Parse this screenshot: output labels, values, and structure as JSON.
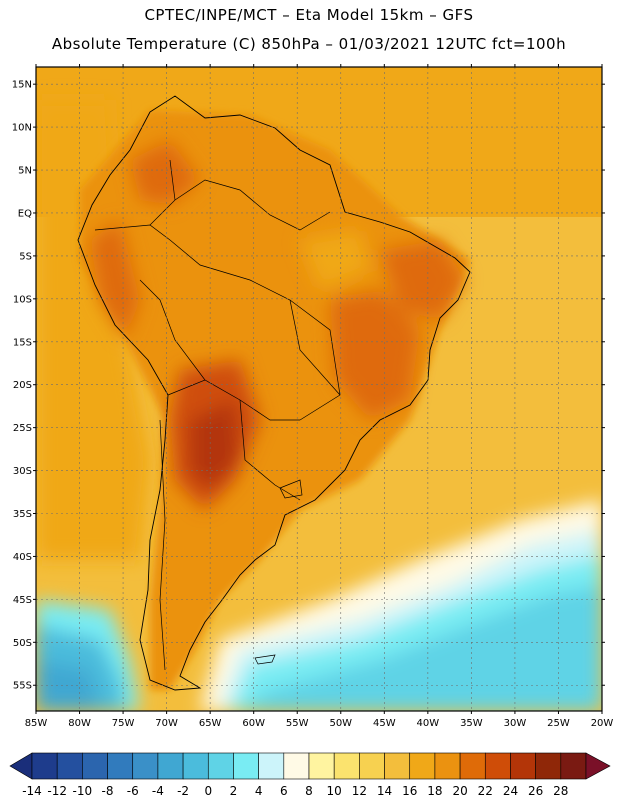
{
  "header": {
    "line1": "CPTEC/INPE/MCT –  Eta Model 15km – GFS",
    "line2": "Absolute Temperature (C) 850hPa – 01/03/2021 12UTC fct=100h"
  },
  "map": {
    "lon_range": [
      -85,
      -20
    ],
    "lat_range": [
      -58,
      17
    ],
    "lat_ticks": [
      "15N",
      "10N",
      "5N",
      "EQ",
      "5S",
      "10S",
      "15S",
      "20S",
      "25S",
      "30S",
      "35S",
      "40S",
      "45S",
      "50S",
      "55S"
    ],
    "lon_ticks": [
      "85W",
      "80W",
      "75W",
      "70W",
      "65W",
      "60W",
      "55W",
      "50W",
      "45W",
      "40W",
      "35W",
      "30W",
      "25W",
      "20W"
    ]
  },
  "colorbar": {
    "labels": [
      "-14",
      "-12",
      "-10",
      "-8",
      "-6",
      "-4",
      "-2",
      "0",
      "2",
      "4",
      "6",
      "8",
      "10",
      "12",
      "14",
      "16",
      "18",
      "20",
      "22",
      "24",
      "26",
      "28"
    ],
    "colors": [
      "#1e3c8c",
      "#24509f",
      "#2b65ae",
      "#317bbd",
      "#3a90c8",
      "#40a7d2",
      "#4bbcdc",
      "#5fd3e6",
      "#79ecf3",
      "#ccf4fa",
      "#fffae6",
      "#fff4a0",
      "#fbe36e",
      "#f7d150",
      "#f3be3c",
      "#f0a818",
      "#eb9210",
      "#df6b08",
      "#cf4d08",
      "#b33508",
      "#8f2708",
      "#7a1a12"
    ],
    "under_color": "#1a2e7a",
    "over_color": "#7a1028"
  },
  "colors": {
    "ocean_north": "#f0a818",
    "ocean_tropical": "#f3be3c",
    "land_warm": "#eb9210",
    "land_hot": "#df6b08",
    "land_very_hot": "#cf4d08",
    "cool_ocean": "#4bbcdc"
  }
}
